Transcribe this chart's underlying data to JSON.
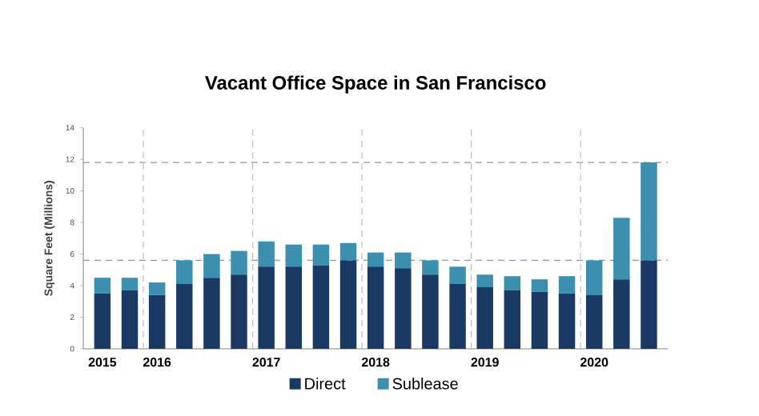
{
  "chart_data": {
    "type": "bar",
    "stacked": true,
    "title": "Vacant Office Space in San Francisco",
    "ylabel": "Square Feet (Millions)",
    "categories": [
      "2015",
      null,
      "2016",
      null,
      null,
      null,
      "2017",
      null,
      null,
      null,
      "2018",
      null,
      null,
      null,
      "2019",
      null,
      null,
      null,
      "2020",
      null,
      null
    ],
    "ylim": [
      0,
      14
    ],
    "yticks": [
      0,
      2,
      4,
      6,
      8,
      10,
      12,
      14
    ],
    "series": [
      {
        "name": "Direct",
        "color": "#1b3a63",
        "values": [
          3.5,
          3.7,
          3.4,
          4.1,
          4.5,
          4.7,
          5.2,
          5.2,
          5.3,
          5.6,
          5.2,
          5.1,
          4.7,
          4.1,
          3.9,
          3.7,
          3.6,
          3.5,
          3.4,
          4.4,
          5.6
        ]
      },
      {
        "name": "Sublease",
        "color": "#3d8fb0",
        "values": [
          1.0,
          0.8,
          0.8,
          1.5,
          1.5,
          1.5,
          1.6,
          1.4,
          1.3,
          1.1,
          0.9,
          1.0,
          0.9,
          1.1,
          0.8,
          0.9,
          0.8,
          1.1,
          2.2,
          3.9,
          6.2
        ]
      }
    ],
    "ref_lines": [
      {
        "axis": "y",
        "value": 5.6,
        "color": "#8a9aa8",
        "line_style": "dashed"
      },
      {
        "axis": "y",
        "value": 11.8,
        "color": "#8a9aa8",
        "line_style": "dashed"
      }
    ],
    "grid": "x",
    "legend": "bottom"
  }
}
